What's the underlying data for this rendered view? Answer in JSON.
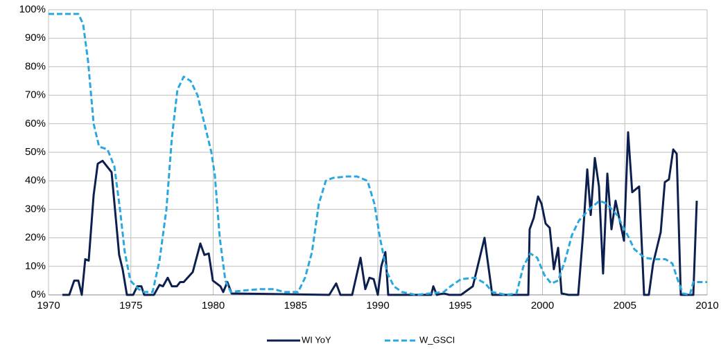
{
  "chart_data": {
    "type": "line",
    "xlim": [
      1970,
      2010
    ],
    "xticks": [
      1970,
      1975,
      1980,
      1985,
      1990,
      1995,
      2000,
      2005,
      2010
    ],
    "ylim": [
      0,
      100
    ],
    "yticks": [
      {
        "value": 0,
        "label": "0%"
      },
      {
        "value": 10,
        "label": "10%"
      },
      {
        "value": 20,
        "label": "20%"
      },
      {
        "value": 30,
        "label": "30%"
      },
      {
        "value": 40,
        "label": "40%"
      },
      {
        "value": 50,
        "label": "50%"
      },
      {
        "value": 60,
        "label": "60%"
      },
      {
        "value": 70,
        "label": "70%"
      },
      {
        "value": 80,
        "label": "80%"
      },
      {
        "value": 90,
        "label": "90%"
      },
      {
        "value": 100,
        "label": "100%"
      }
    ],
    "grid": true,
    "legend": "bottom",
    "series": [
      {
        "name": "WI YoY",
        "color": "#0d1f4e",
        "style": "solid",
        "x": [
          1970.84,
          1971.26,
          1971.56,
          1971.81,
          1972.02,
          1972.23,
          1972.44,
          1972.74,
          1972.99,
          1973.28,
          1973.83,
          1974.29,
          1974.5,
          1974.76,
          1975.14,
          1975.39,
          1975.64,
          1975.81,
          1976.4,
          1976.74,
          1976.95,
          1977.24,
          1977.49,
          1977.79,
          1978.0,
          1978.21,
          1978.76,
          1979.22,
          1979.47,
          1979.73,
          1979.98,
          1980.44,
          1980.61,
          1980.86,
          1981.12,
          1987.05,
          1987.47,
          1987.73,
          1988.44,
          1988.95,
          1989.24,
          1989.49,
          1989.75,
          1990.0,
          1990.21,
          1990.46,
          1990.63,
          1993.24,
          1993.37,
          1993.58,
          1994.0,
          1994.34,
          1995.05,
          1995.77,
          1996.48,
          1996.95,
          1999.14,
          1999.22,
          1999.47,
          1999.73,
          1999.94,
          2000.19,
          2000.44,
          2000.69,
          2000.95,
          2001.16,
          2001.58,
          2002.17,
          2002.46,
          2002.72,
          2002.93,
          2003.18,
          2003.43,
          2003.68,
          2003.94,
          2004.19,
          2004.44,
          2004.95,
          2005.2,
          2005.45,
          2005.87,
          2006.17,
          2006.46,
          2006.72,
          2007.18,
          2007.43,
          2007.68,
          2007.94,
          2008.15,
          2008.4,
          2009.16,
          2009.37
        ],
        "values": [
          0,
          0,
          5,
          5,
          0,
          12.5,
          12,
          35,
          46,
          47,
          43,
          14,
          9,
          0,
          0,
          3,
          3,
          0,
          0,
          3.5,
          3,
          6,
          3,
          3,
          4.5,
          4.5,
          8,
          18,
          14,
          14.5,
          5,
          3,
          1,
          4.5,
          0.5,
          0,
          4,
          0,
          0,
          13,
          2,
          6,
          5.5,
          0,
          10,
          15,
          0,
          0,
          3,
          0,
          0.5,
          0,
          0,
          3,
          20,
          0,
          0,
          23,
          27,
          34.5,
          32,
          25,
          23.5,
          9,
          16.5,
          0.5,
          0,
          0,
          21,
          44,
          28,
          48,
          38,
          7.5,
          42.5,
          23,
          33,
          19,
          57,
          36,
          38,
          0,
          0,
          11,
          22,
          39.5,
          40.5,
          51,
          49.5,
          0,
          0,
          33
        ]
      },
      {
        "name": "W_GSCI",
        "color": "#29a8e0",
        "style": "dashed",
        "x": [
          1970.0,
          1971.81,
          1972.1,
          1972.4,
          1972.74,
          1973.07,
          1973.58,
          1974.0,
          1974.34,
          1974.63,
          1974.97,
          1975.47,
          1975.81,
          1976.32,
          1976.74,
          1977.16,
          1977.49,
          1977.83,
          1978.21,
          1978.63,
          1979.05,
          1979.47,
          1979.89,
          1980.1,
          1980.4,
          1980.74,
          1981.07,
          1981.79,
          1982.84,
          1983.68,
          1984.32,
          1985.16,
          1985.58,
          1986.0,
          1986.42,
          1986.84,
          1987.26,
          1988.1,
          1988.74,
          1989.37,
          1989.79,
          1990.13,
          1990.55,
          1990.97,
          1991.47,
          1992.32,
          1994.0,
          1994.42,
          1995.05,
          1995.89,
          1996.53,
          1996.95,
          1997.79,
          1998.42,
          1998.84,
          1999.26,
          1999.68,
          2000.11,
          2000.53,
          2000.95,
          2001.37,
          2001.79,
          2002.21,
          2002.84,
          2003.47,
          2003.89,
          2004.53,
          2005.16,
          2005.58,
          2006.21,
          2006.84,
          2007.47,
          2007.89,
          2008.23,
          2008.53,
          2008.95,
          2009.16,
          2010.0
        ],
        "values": [
          98.5,
          98.5,
          95,
          82,
          60,
          52,
          51,
          45,
          30,
          15,
          5,
          2,
          1,
          1,
          12,
          30,
          55,
          72,
          76.5,
          75,
          70,
          60,
          50,
          42,
          20,
          5,
          1,
          1.5,
          2,
          2,
          1,
          1,
          6,
          15,
          32,
          40,
          41,
          41.5,
          41.5,
          40,
          32,
          20,
          8,
          3,
          1,
          0,
          1,
          3,
          5.5,
          6,
          4,
          1,
          0,
          0.5,
          10,
          14.5,
          13,
          7,
          4,
          5,
          12,
          21,
          26,
          30,
          33,
          32,
          28,
          21,
          16,
          13,
          12.5,
          12.5,
          11,
          5,
          0.5,
          0,
          4.5,
          4.5
        ]
      }
    ]
  }
}
